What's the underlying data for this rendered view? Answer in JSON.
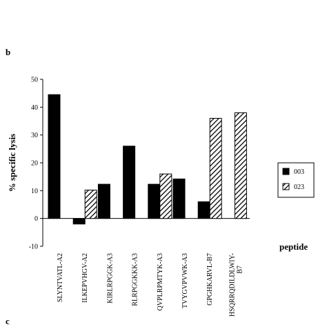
{
  "panel_labels": [
    "b",
    "c"
  ],
  "chart_data": {
    "type": "bar",
    "categories": [
      "SLYNTVATL-A2",
      "ILKEPVHGV-A2",
      "KIRLRPGGK-A3",
      "RLRPGGKKK-A3",
      "QVPLRPMTYK-A3",
      "TVYGVPVWK-A3",
      "GPGHKARVL-B7",
      "HSQRRQDILDLWIY-\nB7"
    ],
    "series": [
      {
        "name": "003",
        "color": "#000000",
        "pattern": "solid",
        "values": [
          44.5,
          -2,
          12.3,
          26,
          12.3,
          14.2,
          6,
          null
        ]
      },
      {
        "name": "023",
        "color": "#000000",
        "pattern": "hatch",
        "values": [
          null,
          10.2,
          null,
          null,
          16,
          null,
          36,
          38
        ]
      }
    ],
    "y_label": "% specific lysis",
    "x_label": "peptide",
    "ylim": [
      -10,
      50
    ],
    "yticks": [
      -10,
      0,
      10,
      20,
      30,
      40,
      50
    ],
    "legend": "right"
  }
}
